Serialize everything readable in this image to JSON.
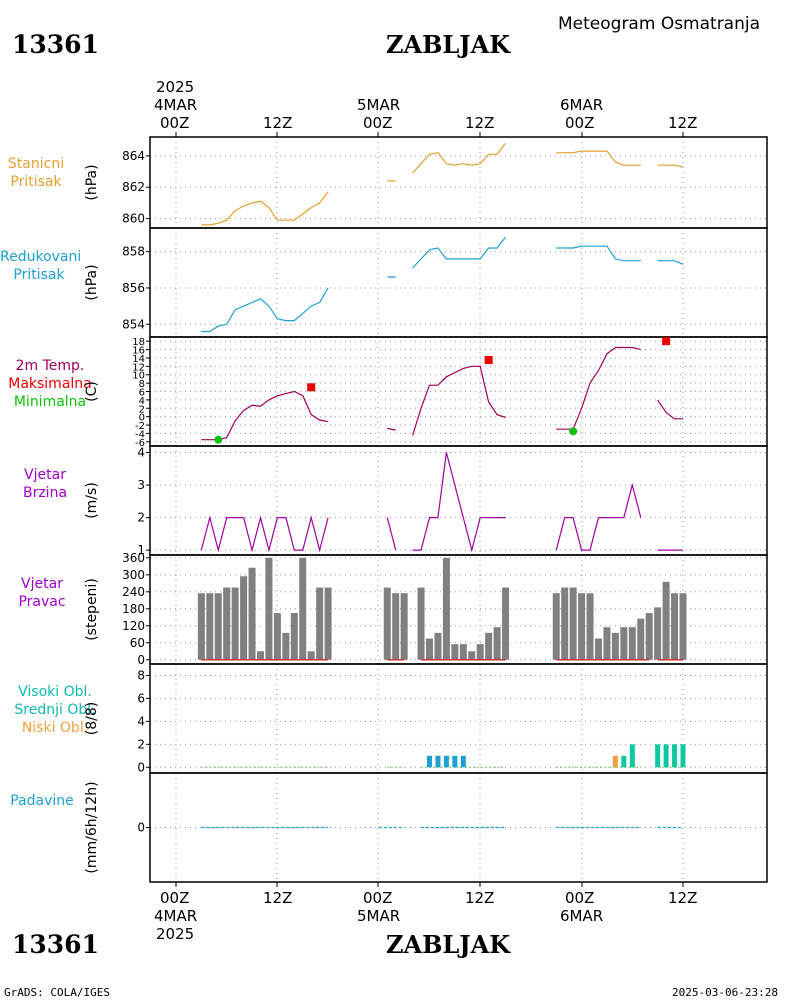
{
  "header": {
    "station_id": "13361",
    "station_name": "ZABLJAK",
    "product": "Meteogram Osmatranja"
  },
  "footer": {
    "credit": "GrADS: COLA/IGES",
    "timestamp": "2025-03-06-23:28"
  },
  "time_axis": {
    "year_top": "2025",
    "year_bottom": "2025",
    "ticks": [
      "00Z",
      "12Z",
      "00Z",
      "12Z",
      "00Z",
      "12Z"
    ],
    "dates": [
      "4MAR",
      "5MAR",
      "6MAR"
    ]
  },
  "panel_labels": {
    "station_pressure": [
      "Stanicni",
      "Pritisak"
    ],
    "reduced_pressure": [
      "Redukovani",
      "Pritisak"
    ],
    "temp": [
      "2m Temp.",
      "Maksimalna",
      "Minimalna"
    ],
    "wind_speed": [
      "Vjetar",
      "Brzina"
    ],
    "wind_dir": [
      "Vjetar",
      "Pravac"
    ],
    "clouds": [
      "Visoki Obl.",
      "Srednji Obl.",
      "Niski Obl."
    ],
    "precip": [
      "Padavine"
    ]
  },
  "units": {
    "station_pressure": "(hPa)",
    "reduced_pressure": "(hPa)",
    "temp": "(C)",
    "wind_speed": "(m/s)",
    "wind_dir": "(stepeni)",
    "clouds": "(8/8)",
    "precip": "(mm/6h/12h)"
  },
  "colors": {
    "station_pressure": "#e0a030",
    "reduced_pressure": "#1ea0d2",
    "temp": "#a0005a",
    "temp_max": "#ee0000",
    "temp_min": "#10c010",
    "wind_label": "#a000c8",
    "wind_speed": "#a000a0",
    "wind_dir_bar": "#808080",
    "wind_dir_base": "#cc3333",
    "cloud_high": "#10c8a0",
    "cloud_mid": "#1ea0d2",
    "cloud_low": "#f0a040",
    "precip": "#1ea0d2"
  },
  "chart_data": [
    {
      "type": "line",
      "name": "station_pressure",
      "ylim": [
        859.4,
        865.2
      ],
      "yticks": [
        860,
        862,
        864
      ],
      "segments": [
        {
          "x": [
            3,
            4,
            5,
            6,
            7,
            8,
            9,
            10,
            11,
            12,
            13,
            14,
            15,
            16,
            17,
            18
          ],
          "y": [
            859.6,
            859.6,
            859.7,
            859.9,
            860.5,
            860.8,
            861.0,
            861.1,
            860.7,
            859.9,
            859.9,
            859.9,
            860.3,
            860.7,
            861.0,
            861.7
          ]
        },
        {
          "x": [
            25,
            26
          ],
          "y": [
            862.4,
            862.4
          ]
        },
        {
          "x": [
            28,
            29,
            30,
            31,
            32,
            33,
            34,
            35,
            36,
            37,
            38,
            39
          ],
          "y": [
            862.9,
            863.5,
            864.1,
            864.2,
            863.5,
            863.4,
            863.5,
            863.4,
            863.5,
            864.1,
            864.1,
            864.8
          ]
        },
        {
          "x": [
            45,
            46,
            47,
            48,
            49,
            50,
            51,
            52,
            53,
            54,
            55
          ],
          "y": [
            864.2,
            864.2,
            864.2,
            864.3,
            864.3,
            864.3,
            864.3,
            863.6,
            863.4,
            863.4,
            863.4
          ]
        },
        {
          "x": [
            57,
            58,
            59,
            60
          ],
          "y": [
            863.4,
            863.4,
            863.4,
            863.3
          ]
        }
      ]
    },
    {
      "type": "line",
      "name": "reduced_pressure",
      "ylim": [
        853.3,
        859.3
      ],
      "yticks": [
        854,
        856,
        858
      ],
      "segments": [
        {
          "x": [
            3,
            4,
            5,
            6,
            7,
            8,
            9,
            10,
            11,
            12,
            13,
            14,
            15,
            16,
            17,
            18
          ],
          "y": [
            853.6,
            853.6,
            853.9,
            854.0,
            854.8,
            855.0,
            855.2,
            855.4,
            855.0,
            854.3,
            854.2,
            854.2,
            854.6,
            855.0,
            855.2,
            856.0
          ]
        },
        {
          "x": [
            25,
            26
          ],
          "y": [
            856.6,
            856.6
          ]
        },
        {
          "x": [
            28,
            29,
            30,
            31,
            32,
            33,
            34,
            35,
            36,
            37,
            38,
            39
          ],
          "y": [
            857.1,
            857.6,
            858.1,
            858.2,
            857.6,
            857.6,
            857.6,
            857.6,
            857.6,
            858.2,
            858.2,
            858.8
          ]
        },
        {
          "x": [
            45,
            46,
            47,
            48,
            49,
            50,
            51,
            52,
            53,
            54,
            55
          ],
          "y": [
            858.2,
            858.2,
            858.2,
            858.3,
            858.3,
            858.3,
            858.3,
            857.6,
            857.5,
            857.5,
            857.5
          ]
        },
        {
          "x": [
            57,
            58,
            59,
            60
          ],
          "y": [
            857.5,
            857.5,
            857.5,
            857.3
          ]
        }
      ]
    },
    {
      "type": "line",
      "name": "temperature",
      "ylim": [
        -7,
        19
      ],
      "yticks": [
        -6,
        -4,
        -2,
        0,
        2,
        4,
        6,
        8,
        10,
        12,
        14,
        16,
        18
      ],
      "segments": [
        {
          "x": [
            3,
            4,
            5,
            6,
            7,
            8,
            9,
            10,
            11,
            12,
            13,
            14,
            15,
            16,
            17,
            18
          ],
          "y": [
            -5.5,
            -5.5,
            -5.5,
            -5.0,
            -1.0,
            1.5,
            2.7,
            2.5,
            4.0,
            5.0,
            5.5,
            6.0,
            5.0,
            0.5,
            -0.8,
            -1.2
          ]
        },
        {
          "x": [
            25,
            26
          ],
          "y": [
            -2.8,
            -3.2
          ]
        },
        {
          "x": [
            28,
            29,
            30,
            31,
            32,
            33,
            34,
            35,
            36,
            37,
            38,
            39
          ],
          "y": [
            -4.5,
            2.0,
            7.5,
            7.5,
            9.5,
            10.5,
            11.5,
            12.0,
            12.0,
            3.5,
            0.5,
            -0.2
          ]
        },
        {
          "x": [
            45,
            46,
            47,
            48,
            49,
            50,
            51,
            52,
            53,
            54,
            55
          ],
          "y": [
            -3.0,
            -3.0,
            -3.0,
            2.0,
            8.0,
            11.0,
            15.0,
            16.5,
            16.5,
            16.5,
            16.0
          ]
        },
        {
          "x": [
            57,
            58,
            59,
            60
          ],
          "y": [
            4.0,
            1.0,
            -0.5,
            -0.5
          ]
        }
      ],
      "maximum": [
        {
          "x": 16,
          "y": 7.0
        },
        {
          "x": 37,
          "y": 13.5
        },
        {
          "x": 58,
          "y": 18.0
        }
      ],
      "minimum": [
        {
          "x": 5,
          "y": -5.5
        },
        {
          "x": 47,
          "y": -3.5
        }
      ]
    },
    {
      "type": "line",
      "name": "wind_speed",
      "ylim": [
        0.85,
        4.2
      ],
      "yticks": [
        1,
        2,
        3,
        4
      ],
      "segments": [
        {
          "x": [
            3,
            4,
            5,
            6,
            7,
            8,
            9,
            10,
            11,
            12,
            13,
            14,
            15,
            16,
            17,
            18
          ],
          "y": [
            1,
            2,
            1,
            2,
            2,
            2,
            1,
            2,
            1,
            2,
            2,
            1,
            1,
            2,
            1,
            2
          ]
        },
        {
          "x": [
            25,
            26
          ],
          "y": [
            2,
            1
          ]
        },
        {
          "x": [
            28,
            29,
            30,
            31,
            32,
            33,
            34,
            35,
            36,
            37,
            38,
            39
          ],
          "y": [
            1,
            1,
            2,
            2,
            4,
            3,
            2,
            1,
            2,
            2,
            2,
            2
          ]
        },
        {
          "x": [
            45,
            46,
            47,
            48,
            49,
            50,
            51,
            52,
            53,
            54,
            55
          ],
          "y": [
            1,
            2,
            2,
            1,
            1,
            2,
            2,
            2,
            2,
            3,
            2
          ]
        },
        {
          "x": [
            57,
            58,
            59,
            60
          ],
          "y": [
            1,
            1,
            1,
            1
          ]
        }
      ]
    },
    {
      "type": "bar",
      "name": "wind_direction",
      "ylim": [
        -15,
        370
      ],
      "yticks": [
        0,
        60,
        120,
        180,
        240,
        300,
        360
      ],
      "x": [
        3,
        4,
        5,
        6,
        7,
        8,
        9,
        10,
        11,
        12,
        13,
        14,
        15,
        16,
        17,
        18,
        25,
        26,
        27,
        29,
        30,
        31,
        32,
        33,
        34,
        35,
        36,
        37,
        38,
        39,
        45,
        46,
        47,
        48,
        49,
        50,
        51,
        52,
        53,
        54,
        55,
        56,
        57,
        58,
        59,
        60
      ],
      "values": [
        235,
        235,
        235,
        255,
        255,
        295,
        325,
        30,
        360,
        165,
        95,
        165,
        360,
        30,
        255,
        255,
        255,
        235,
        235,
        255,
        75,
        95,
        360,
        55,
        55,
        30,
        55,
        95,
        115,
        255,
        235,
        255,
        255,
        235,
        235,
        75,
        115,
        95,
        115,
        115,
        145,
        165,
        185,
        275,
        235,
        235
      ]
    },
    {
      "type": "bar",
      "name": "clouds",
      "ylim": [
        -0.5,
        9
      ],
      "yticks": [
        0,
        2,
        4,
        6,
        8
      ],
      "high": {
        "x": [
          53,
          54,
          57,
          58,
          59,
          60
        ],
        "values": [
          1,
          2,
          2,
          2,
          2,
          2
        ]
      },
      "mid": {
        "x": [
          30,
          31,
          32,
          33,
          34
        ],
        "values": [
          1,
          1,
          1,
          1,
          1
        ]
      },
      "low": {
        "x": [
          52
        ],
        "values": [
          1
        ]
      }
    },
    {
      "type": "line",
      "name": "precipitation",
      "ylim": [
        -5,
        5
      ],
      "yticks": [
        0
      ],
      "segments": [
        {
          "x": [
            3,
            18
          ],
          "y": [
            0,
            0
          ]
        },
        {
          "x": [
            24,
            27
          ],
          "y": [
            0,
            0
          ]
        },
        {
          "x": [
            29,
            39
          ],
          "y": [
            0,
            0
          ]
        },
        {
          "x": [
            45,
            55
          ],
          "y": [
            0,
            0
          ]
        },
        {
          "x": [
            57,
            60
          ],
          "y": [
            0,
            0
          ]
        }
      ]
    }
  ]
}
